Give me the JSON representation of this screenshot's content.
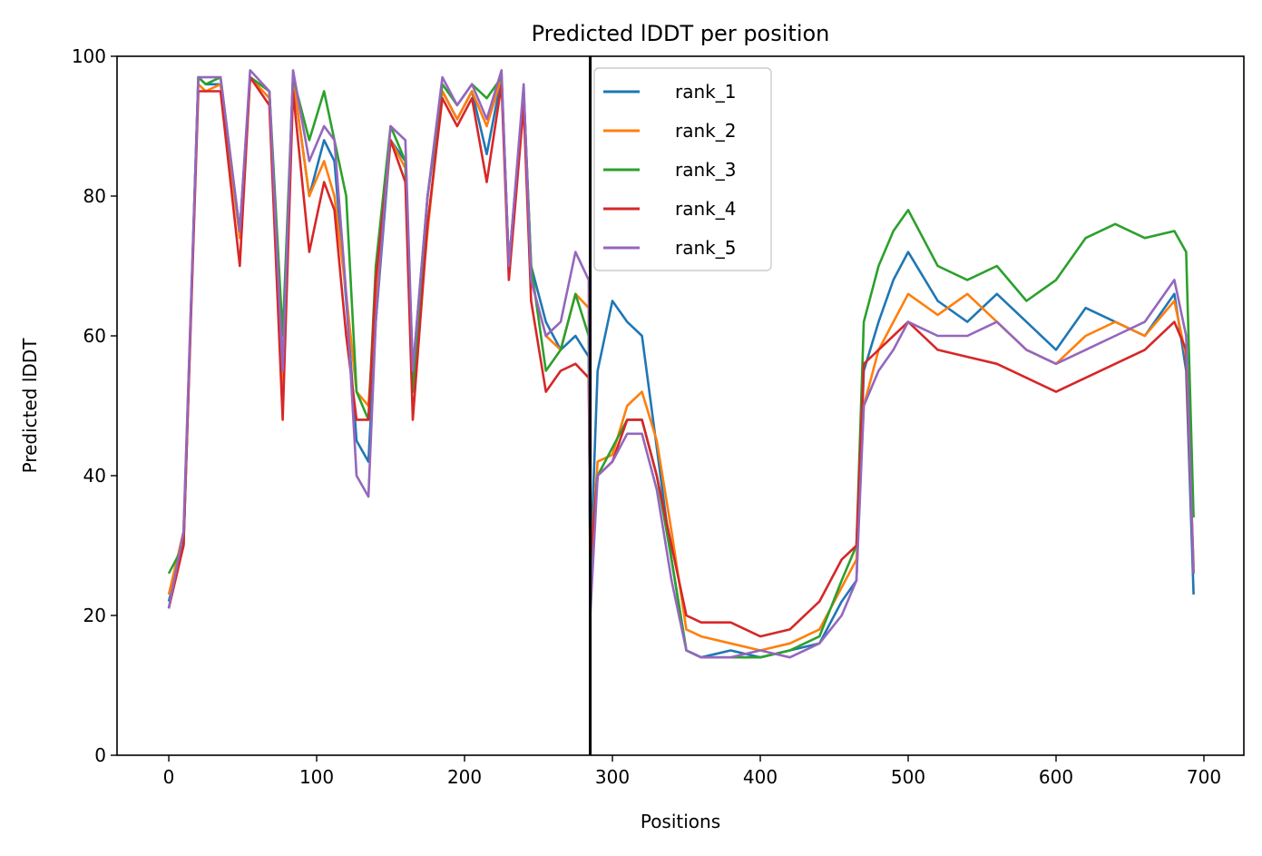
{
  "chart_data": {
    "type": "line",
    "title": "Predicted lDDT per position",
    "xlabel": "Positions",
    "ylabel": "Predicted lDDT",
    "xlim": [
      -35,
      727
    ],
    "ylim": [
      0,
      100
    ],
    "xticks": [
      0,
      100,
      200,
      300,
      400,
      500,
      600,
      700
    ],
    "yticks": [
      0,
      20,
      40,
      60,
      80,
      100
    ],
    "vline": 285,
    "grid": false,
    "legend_position": "upper-center",
    "x": [
      0,
      10,
      20,
      25,
      35,
      48,
      55,
      68,
      77,
      84,
      95,
      105,
      112,
      120,
      127,
      135,
      140,
      150,
      160,
      165,
      175,
      185,
      195,
      205,
      215,
      225,
      230,
      240,
      245,
      255,
      265,
      275,
      284,
      285,
      290,
      300,
      310,
      320,
      330,
      340,
      350,
      360,
      380,
      400,
      420,
      440,
      455,
      465,
      470,
      480,
      490,
      500,
      520,
      540,
      560,
      580,
      600,
      620,
      640,
      660,
      680,
      688,
      693
    ],
    "series": [
      {
        "name": "rank_1",
        "color": "#1f77b4",
        "values": [
          22,
          30,
          97,
          96,
          96,
          75,
          97,
          95,
          55,
          97,
          80,
          88,
          85,
          65,
          45,
          42,
          62,
          88,
          85,
          55,
          80,
          95,
          91,
          95,
          86,
          97,
          70,
          95,
          70,
          62,
          58,
          60,
          57,
          26,
          55,
          65,
          62,
          60,
          44,
          28,
          15,
          14,
          15,
          14,
          15,
          16,
          22,
          25,
          55,
          62,
          68,
          72,
          65,
          62,
          66,
          62,
          58,
          64,
          62,
          60,
          66,
          55,
          23
        ]
      },
      {
        "name": "rank_2",
        "color": "#ff7f0e",
        "values": [
          23,
          32,
          96,
          95,
          96,
          74,
          97,
          94,
          52,
          97,
          80,
          85,
          80,
          66,
          52,
          50,
          65,
          88,
          84,
          52,
          75,
          95,
          91,
          95,
          90,
          97,
          70,
          95,
          68,
          60,
          58,
          66,
          64,
          27,
          42,
          43,
          50,
          52,
          45,
          32,
          18,
          17,
          16,
          15,
          16,
          18,
          24,
          28,
          50,
          58,
          62,
          66,
          63,
          66,
          62,
          58,
          56,
          60,
          62,
          60,
          65,
          57,
          27
        ]
      },
      {
        "name": "rank_3",
        "color": "#2ca02c",
        "values": [
          26,
          30,
          97,
          96,
          97,
          75,
          97,
          95,
          60,
          97,
          88,
          95,
          88,
          80,
          52,
          48,
          70,
          90,
          85,
          52,
          80,
          96,
          93,
          96,
          94,
          97,
          70,
          95,
          70,
          55,
          58,
          66,
          60,
          25,
          40,
          44,
          48,
          48,
          40,
          28,
          15,
          14,
          14,
          14,
          15,
          17,
          25,
          30,
          62,
          70,
          75,
          78,
          70,
          68,
          70,
          65,
          68,
          74,
          76,
          74,
          75,
          72,
          34
        ]
      },
      {
        "name": "rank_4",
        "color": "#d62728",
        "values": [
          21,
          30,
          95,
          95,
          95,
          70,
          97,
          93,
          48,
          95,
          72,
          82,
          78,
          60,
          48,
          48,
          68,
          88,
          82,
          48,
          76,
          94,
          90,
          94,
          82,
          96,
          68,
          93,
          65,
          52,
          55,
          56,
          54,
          28,
          40,
          42,
          48,
          48,
          40,
          30,
          20,
          19,
          19,
          17,
          18,
          22,
          28,
          30,
          56,
          58,
          60,
          62,
          58,
          57,
          56,
          54,
          52,
          54,
          56,
          58,
          62,
          58,
          26
        ]
      },
      {
        "name": "rank_5",
        "color": "#9467bd",
        "values": [
          21,
          32,
          97,
          97,
          97,
          75,
          98,
          95,
          55,
          98,
          85,
          90,
          88,
          66,
          40,
          37,
          62,
          90,
          88,
          55,
          80,
          97,
          93,
          96,
          91,
          98,
          70,
          96,
          68,
          60,
          62,
          72,
          68,
          20,
          40,
          42,
          46,
          46,
          38,
          25,
          15,
          14,
          14,
          15,
          14,
          16,
          20,
          25,
          50,
          55,
          58,
          62,
          60,
          60,
          62,
          58,
          56,
          58,
          60,
          62,
          68,
          60,
          26
        ]
      }
    ]
  }
}
